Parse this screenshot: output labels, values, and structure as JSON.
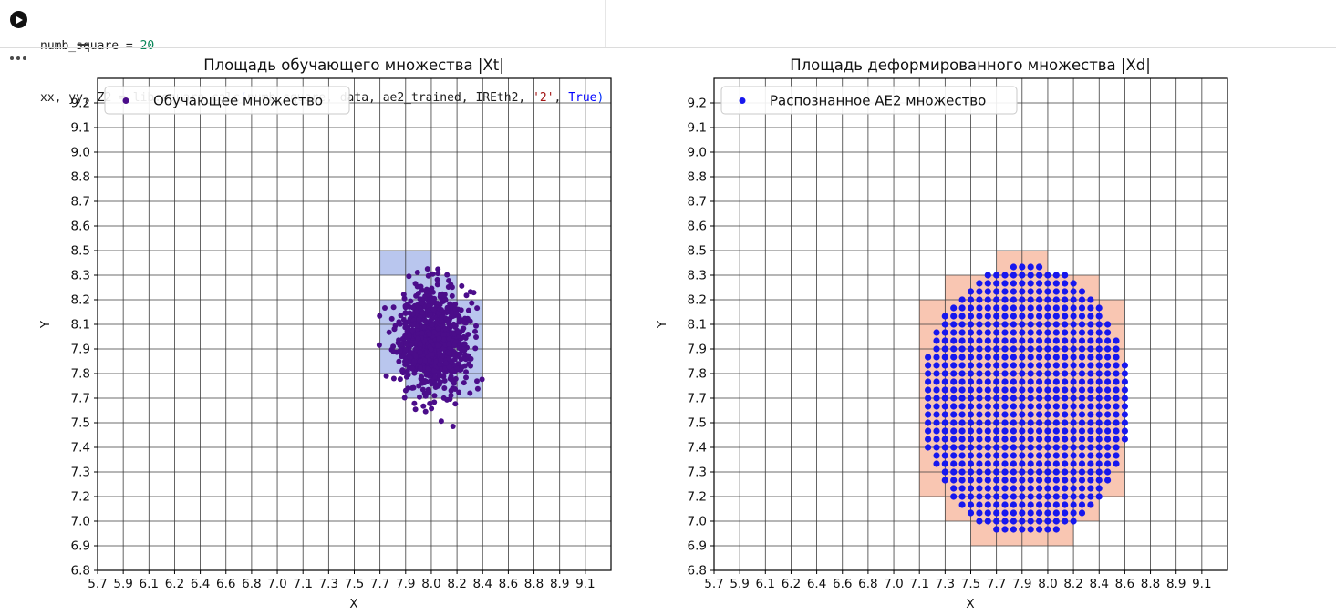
{
  "notebook": {
    "token_colors": {
      "plain": "#1c1c1c",
      "number": "#098658",
      "string": "#a31515",
      "keyword": "#0000ff",
      "paren": "#0431fa"
    },
    "code_lines": [
      [
        {
          "t": "numb_square = ",
          "c": "plain"
        },
        {
          "t": "20",
          "c": "number"
        }
      ],
      [
        {
          "t": "xx, yy, Z2 = lib.square_calc",
          "c": "plain"
        },
        {
          "t": "(",
          "c": "paren"
        },
        {
          "t": "numb_square, data, ae2_trained, IREth2, ",
          "c": "plain"
        },
        {
          "t": "'2'",
          "c": "string"
        },
        {
          "t": ", ",
          "c": "plain"
        },
        {
          "t": "True",
          "c": "keyword"
        },
        {
          "t": ")",
          "c": "paren"
        }
      ]
    ]
  },
  "chart_data": [
    {
      "type": "scatter",
      "title": "Площадь обучающего множества |Xt|",
      "xlabel": "X",
      "ylabel": "Y",
      "x_tick_labels": [
        "5.7",
        "5.9",
        "6.1",
        "6.2",
        "6.4",
        "6.6",
        "6.8",
        "7.0",
        "7.1",
        "7.3",
        "7.5",
        "7.7",
        "7.9",
        "8.0",
        "8.2",
        "8.4",
        "8.6",
        "8.8",
        "8.9",
        "9.1"
      ],
      "y_tick_labels": [
        "6.8",
        "6.9",
        "7.0",
        "7.2",
        "7.3",
        "7.4",
        "7.5",
        "7.7",
        "7.8",
        "7.9",
        "8.1",
        "8.2",
        "8.3",
        "8.5",
        "8.6",
        "8.7",
        "8.8",
        "9.0",
        "9.1",
        "9.2"
      ],
      "x_range": [
        5.7,
        9.2789
      ],
      "y_range": [
        6.8,
        9.3263
      ],
      "grid_squares": 20,
      "grid_color": "#3d3d3d",
      "legend": {
        "label": "Обучающее множество"
      },
      "marker_color": "#4b0d8a",
      "marker_px": 3.0,
      "cell_color": "#b9c6ee",
      "cell_rows": [
        [
          12,
          11,
          12
        ],
        [
          11,
          12,
          13
        ],
        [
          10,
          11,
          14
        ],
        [
          9,
          11,
          14
        ],
        [
          8,
          11,
          14
        ],
        [
          7,
          12,
          14
        ]
      ],
      "cluster": {
        "kind": "gaussian",
        "center": [
          8.03,
          7.98
        ],
        "sigma": [
          0.125,
          0.13
        ],
        "n": 950,
        "seed": 7,
        "extra_points": [
          [
            7.87,
            8.31
          ],
          [
            7.93,
            8.33
          ],
          [
            7.76,
            7.95
          ],
          [
            8.3,
            7.85
          ]
        ]
      }
    },
    {
      "type": "scatter",
      "title": "Площадь деформированного множества |Xd|",
      "xlabel": "X",
      "ylabel": "Y",
      "x_tick_labels": [
        "5.7",
        "5.9",
        "6.1",
        "6.2",
        "6.4",
        "6.6",
        "6.8",
        "7.0",
        "7.1",
        "7.3",
        "7.5",
        "7.7",
        "7.9",
        "8.0",
        "8.2",
        "8.4",
        "8.6",
        "8.8",
        "8.9",
        "9.1"
      ],
      "y_tick_labels": [
        "6.8",
        "6.9",
        "7.0",
        "7.2",
        "7.3",
        "7.4",
        "7.5",
        "7.7",
        "7.8",
        "7.9",
        "8.1",
        "8.2",
        "8.3",
        "8.5",
        "8.6",
        "8.7",
        "8.8",
        "9.0",
        "9.1",
        "9.2"
      ],
      "x_range": [
        5.7,
        9.2789
      ],
      "y_range": [
        6.8,
        9.3263
      ],
      "grid_squares": 20,
      "grid_color": "#3d3d3d",
      "legend": {
        "label": "Распознанное AE2 множество"
      },
      "marker_color": "#1717ee",
      "marker_px": 3.6,
      "cell_color": "#f9c6b2",
      "cell_rows": [
        [
          12,
          11,
          12
        ],
        [
          11,
          9,
          14
        ],
        [
          10,
          8,
          15
        ],
        [
          9,
          8,
          15
        ],
        [
          8,
          8,
          15
        ],
        [
          7,
          8,
          15
        ],
        [
          6,
          8,
          15
        ],
        [
          5,
          8,
          15
        ],
        [
          4,
          8,
          15
        ],
        [
          3,
          8,
          15
        ],
        [
          2,
          9,
          14
        ],
        [
          1,
          10,
          13
        ]
      ],
      "disc": {
        "kind": "mesh_ellipse",
        "center": [
          7.87,
          7.67
        ],
        "radius": [
          0.725,
          0.7
        ],
        "mesh_per_cell": 3
      }
    }
  ]
}
